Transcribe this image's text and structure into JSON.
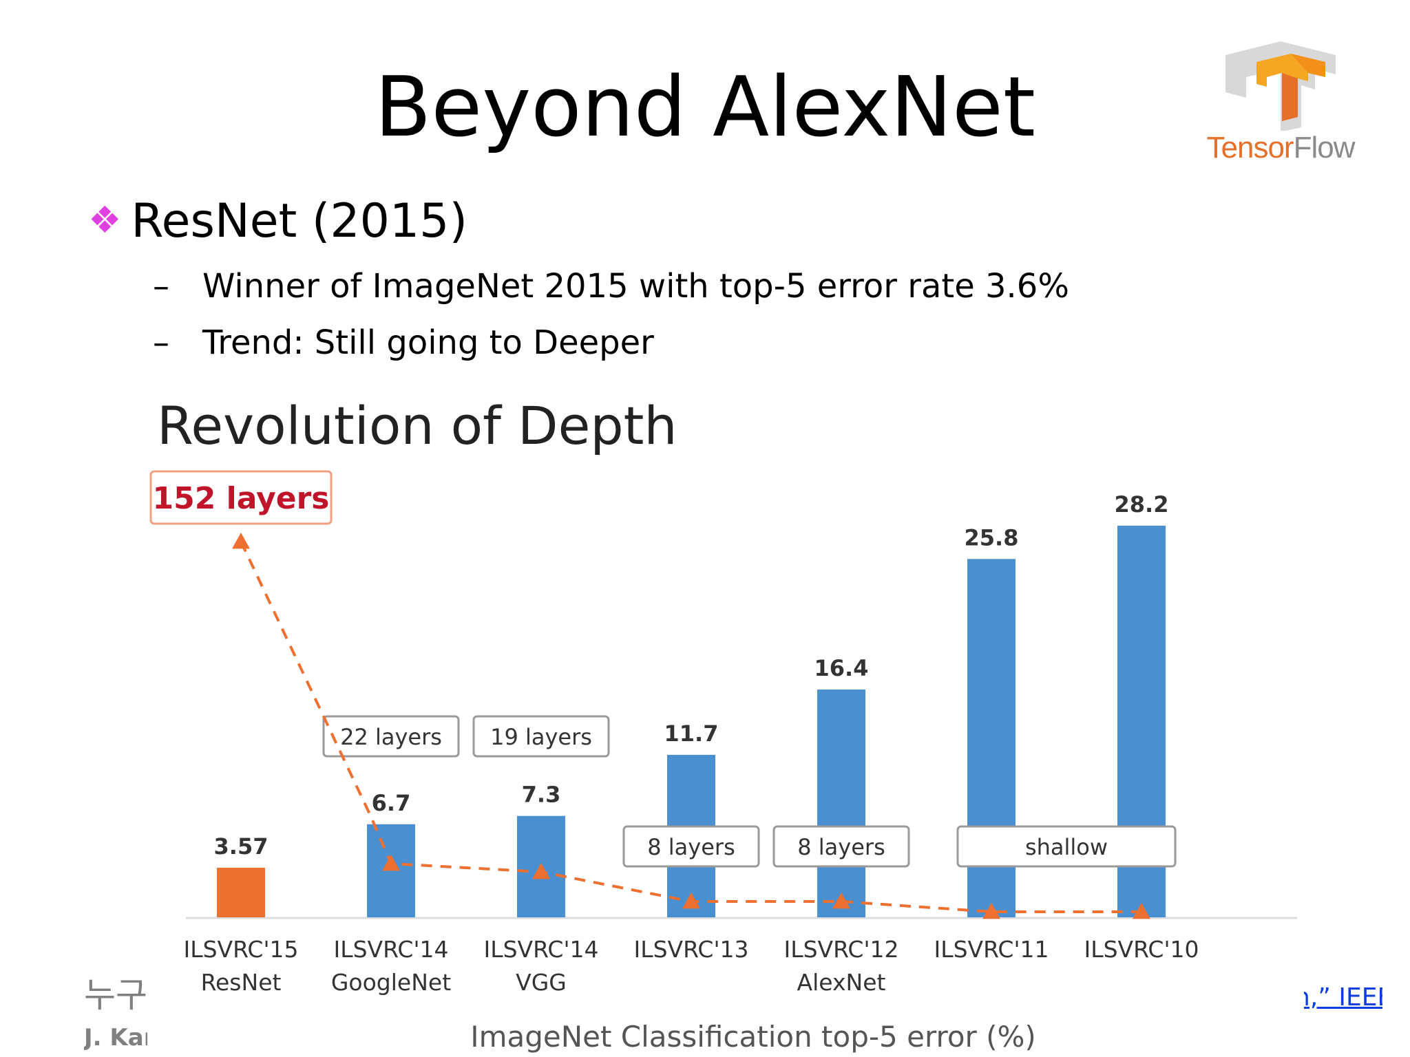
{
  "slide": {
    "title": "Beyond AlexNet",
    "bullet": "ResNet (2015)",
    "bullet_marker": "❖",
    "sub_bullets": [
      {
        "dash": "–",
        "text": "Winner of ImageNet 2015 with top-5 error rate 3.6%"
      },
      {
        "dash": "–",
        "text": "Trend: Still going to Deeper"
      }
    ]
  },
  "logo": {
    "name": "tensorflow-logo",
    "word_part1": "Tensor",
    "word_part2": "Flow",
    "colors": {
      "orange": "#e5702a",
      "gray": "#8a8a8a"
    }
  },
  "footer": {
    "left_line1": "누구",
    "left_line2": "J. Kaı",
    "right_link": "n,” IEEE"
  },
  "chart_data": {
    "type": "bar",
    "title": "Revolution of Depth",
    "xlabel": "ImageNet Classification top-5 error (%)",
    "ylabel": "",
    "ylim": [
      0,
      30
    ],
    "grid": false,
    "categories": [
      [
        "ILSVRC'15",
        "ResNet"
      ],
      [
        "ILSVRC'14",
        "GoogleNet"
      ],
      [
        "ILSVRC'14",
        "VGG"
      ],
      [
        "ILSVRC'13",
        ""
      ],
      [
        "ILSVRC'12",
        "AlexNet"
      ],
      [
        "ILSVRC'11",
        ""
      ],
      [
        "ILSVRC'10",
        ""
      ]
    ],
    "values": [
      3.57,
      6.7,
      7.3,
      11.7,
      16.4,
      25.8,
      28.2
    ],
    "value_labels": [
      "3.57",
      "6.7",
      "7.3",
      "11.7",
      "16.4",
      "25.8",
      "28.2"
    ],
    "bar_colors": [
      "#ee7030",
      "#4a8fd0",
      "#4a8fd0",
      "#4a8fd0",
      "#4a8fd0",
      "#4a8fd0",
      "#4a8fd0"
    ],
    "layer_annotations": [
      {
        "text": "152 layers",
        "bar_index": 0,
        "highlight": true
      },
      {
        "text": "22 layers",
        "bar_index": 1
      },
      {
        "text": "19 layers",
        "bar_index": 2
      },
      {
        "text": "8 layers",
        "bar_index": 3
      },
      {
        "text": "8 layers",
        "bar_index": 4
      },
      {
        "text": "shallow",
        "bar_index": [
          5,
          6
        ]
      }
    ],
    "depth_trend": {
      "style": "dashed line with triangle markers",
      "color": "#ee7030",
      "points": [
        152,
        22,
        19,
        8,
        8,
        0,
        0
      ]
    }
  }
}
